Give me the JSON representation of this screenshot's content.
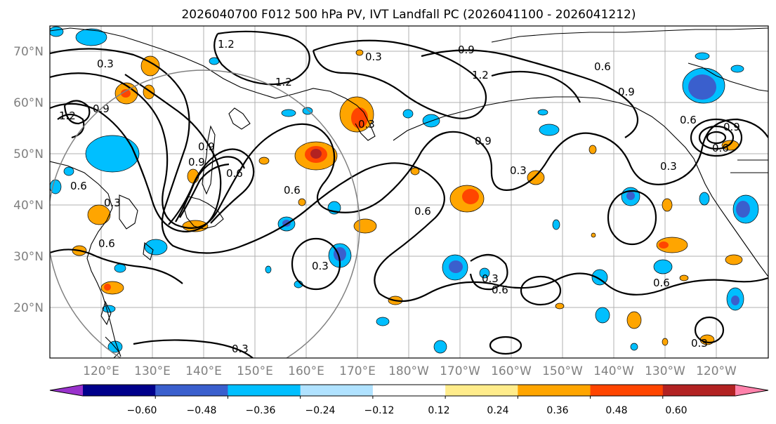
{
  "title": "2026040700 F012 500 hPa PV, IVT Landfall PC (2026041100 - 2026041212)",
  "lat_labels": [
    "70°N",
    "60°N",
    "50°N",
    "40°N",
    "30°N",
    "20°N"
  ],
  "lon_labels": [
    "120°E",
    "130°E",
    "140°E",
    "150°E",
    "160°E",
    "170°E",
    "180°W",
    "170°W",
    "160°W",
    "150°W",
    "140°W",
    "130°W",
    "120°W"
  ],
  "colorbar": {
    "colors": [
      "#9932cc",
      "#00008b",
      "#3a5fcd",
      "#00bfff",
      "#b0e2ff",
      "#ffffff",
      "#ffec8b",
      "#ffa500",
      "#ff4500",
      "#b22222",
      "#ff82ab"
    ],
    "tick_labels": [
      "−0.60",
      "−0.48",
      "−0.36",
      "−0.24",
      "−0.12",
      "0.12",
      "0.24",
      "0.36",
      "0.48",
      "0.60"
    ]
  },
  "contour_labels": [
    "1.2",
    "0.3",
    "0.3",
    "0.9",
    "0.6",
    "1.2",
    "0.9",
    "1.2",
    "1.2",
    "0.9",
    "0.3",
    "0.9",
    "0.6",
    "0.9",
    "0.6",
    "0.3",
    "0.9",
    "0.6",
    "0.9",
    "0.6",
    "0.3",
    "0.6",
    "0.6",
    "0.3",
    "0.6",
    "0.3",
    "0.3",
    "0.6",
    "0.3",
    "0.6",
    "0.3"
  ]
}
